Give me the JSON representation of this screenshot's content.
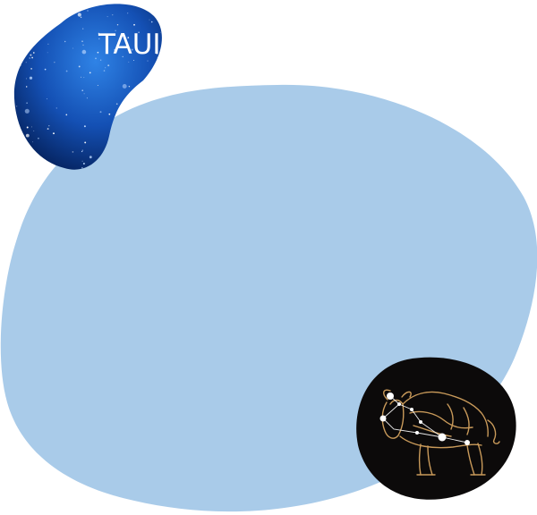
{
  "title": "TAUI",
  "colors": {
    "main_blob": "#a9cbe9",
    "space_blue_dark": "#05235f",
    "space_blue_light": "#2f83e6",
    "dark_disc": "#0c0a0a",
    "bull_line": "#c99a5a",
    "star_white": "#ffffff"
  },
  "icons": {
    "space_blob": "starfield-image",
    "constellation_disc": "taurus-constellation-icon"
  }
}
